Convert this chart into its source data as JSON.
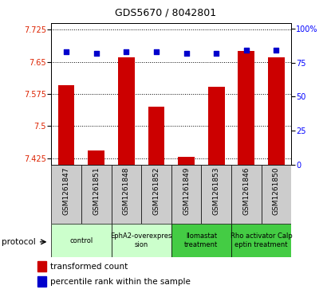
{
  "title": "GDS5670 / 8042801",
  "samples": [
    "GSM1261847",
    "GSM1261851",
    "GSM1261848",
    "GSM1261852",
    "GSM1261849",
    "GSM1261853",
    "GSM1261846",
    "GSM1261850"
  ],
  "transformed_counts": [
    7.595,
    7.443,
    7.66,
    7.545,
    7.428,
    7.592,
    7.675,
    7.66
  ],
  "percentile_ranks": [
    83,
    82,
    83,
    83,
    82,
    82,
    84,
    84
  ],
  "protocols": [
    {
      "label": "control",
      "color": "#ccffcc",
      "span": [
        0,
        2
      ]
    },
    {
      "label": "EphA2-overexpres\nsion",
      "color": "#ccffcc",
      "span": [
        2,
        4
      ]
    },
    {
      "label": "llomastat\ntreatment",
      "color": "#44cc44",
      "span": [
        4,
        6
      ]
    },
    {
      "label": "Rho activator Calp\neptin treatment",
      "color": "#44cc44",
      "span": [
        6,
        8
      ]
    }
  ],
  "ylim_left": [
    7.41,
    7.74
  ],
  "ylim_right": [
    0,
    104
  ],
  "yticks_left": [
    7.425,
    7.5,
    7.575,
    7.65,
    7.725
  ],
  "yticks_right": [
    0,
    25,
    50,
    75,
    100
  ],
  "ytick_labels_right": [
    "0",
    "25",
    "50",
    "75",
    "100%"
  ],
  "bar_color": "#cc0000",
  "dot_color": "#0000cc",
  "bar_bottom": 7.41,
  "protocol_label": "protocol",
  "legend_bar": "transformed count",
  "legend_dot": "percentile rank within the sample",
  "sample_box_color": "#cccccc",
  "title_fontsize": 9,
  "tick_fontsize": 7,
  "label_fontsize": 6.5
}
